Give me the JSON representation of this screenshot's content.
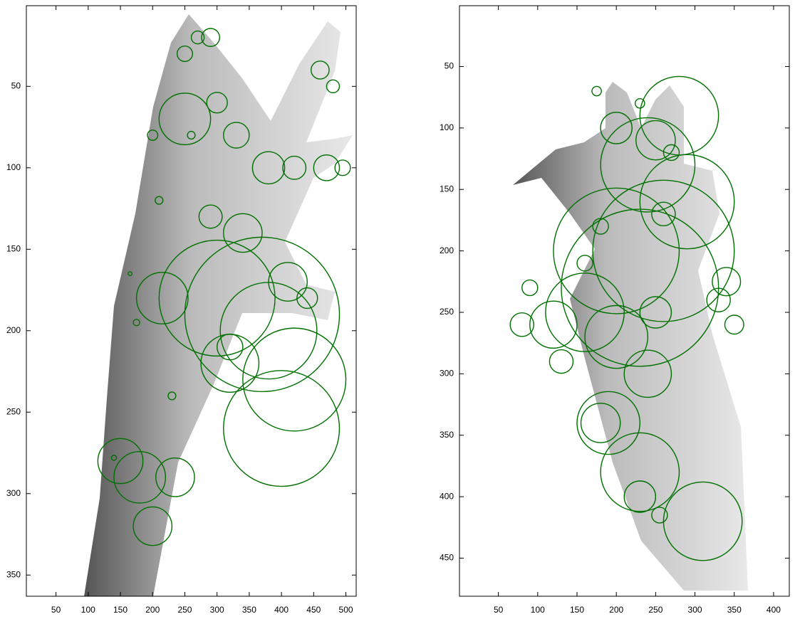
{
  "chart_data": [
    {
      "type": "keypoints",
      "y_reversed": true,
      "color": "#007000",
      "xlim": [
        4,
        516
      ],
      "ylim": [
        0.5,
        363
      ],
      "xticks": [
        50,
        100,
        150,
        200,
        250,
        300,
        350,
        400,
        450,
        500
      ],
      "yticks": [
        50,
        100,
        150,
        200,
        250,
        300,
        350
      ],
      "x": [
        270,
        290,
        250,
        300,
        330,
        380,
        420,
        460,
        480,
        495,
        470,
        440,
        410,
        340,
        290,
        210,
        200,
        260,
        215,
        250,
        380,
        400,
        370,
        420,
        300,
        180,
        150,
        200,
        235,
        140,
        175,
        165,
        230,
        320,
        320
      ],
      "values": [
        20,
        20,
        30,
        60,
        80,
        100,
        100,
        40,
        50,
        100,
        100,
        180,
        170,
        140,
        130,
        120,
        80,
        80,
        180,
        70,
        200,
        260,
        190,
        230,
        180,
        290,
        280,
        320,
        290,
        278,
        195,
        165,
        240,
        210,
        220
      ],
      "sizes": [
        10,
        14,
        12,
        16,
        20,
        25,
        18,
        14,
        10,
        12,
        20,
        16,
        30,
        30,
        18,
        6,
        8,
        6,
        40,
        40,
        75,
        90,
        120,
        80,
        90,
        40,
        35,
        30,
        30,
        4,
        5,
        3,
        6,
        20,
        45
      ]
    },
    {
      "type": "keypoints",
      "y_reversed": true,
      "color": "#007000",
      "xlim": [
        0.5,
        420
      ],
      "ylim": [
        0.5,
        481
      ],
      "xticks": [
        50,
        100,
        150,
        200,
        250,
        300,
        350,
        400
      ],
      "yticks": [
        50,
        100,
        150,
        200,
        250,
        300,
        350,
        400,
        450
      ],
      "x": [
        175,
        230,
        200,
        250,
        280,
        240,
        290,
        260,
        230,
        200,
        160,
        120,
        90,
        80,
        130,
        200,
        250,
        330,
        350,
        340,
        180,
        190,
        230,
        230,
        255,
        310,
        240,
        180,
        160,
        260,
        270
      ],
      "values": [
        70,
        80,
        100,
        110,
        90,
        130,
        160,
        200,
        230,
        200,
        250,
        260,
        230,
        260,
        290,
        270,
        250,
        240,
        260,
        225,
        340,
        340,
        380,
        400,
        415,
        420,
        300,
        180,
        210,
        170,
        120
      ],
      "sizes": [
        6,
        6,
        20,
        25,
        50,
        60,
        60,
        90,
        100,
        80,
        50,
        30,
        10,
        15,
        15,
        40,
        20,
        15,
        12,
        18,
        25,
        40,
        50,
        20,
        10,
        50,
        30,
        10,
        10,
        15,
        10
      ]
    }
  ]
}
